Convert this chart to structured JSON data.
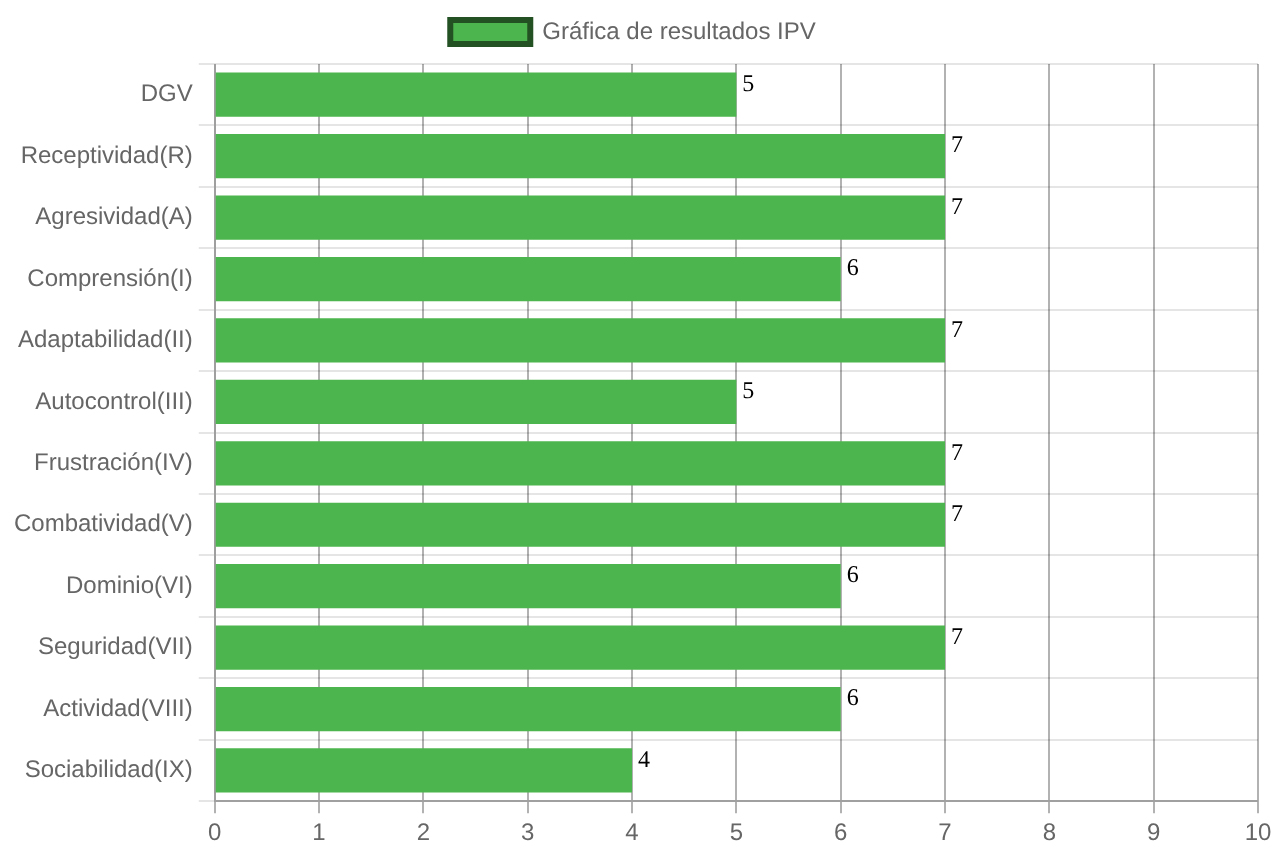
{
  "chart_data": {
    "type": "bar",
    "orientation": "horizontal",
    "categories": [
      "DGV",
      "Receptividad(R)",
      "Agresividad(A)",
      "Comprensión(I)",
      "Adaptabilidad(II)",
      "Autocontrol(III)",
      "Frustración(IV)",
      "Combatividad(V)",
      "Dominio(VI)",
      "Seguridad(VII)",
      "Actividad(VIII)",
      "Sociabilidad(IX)"
    ],
    "series": [
      {
        "name": "Gráfica de resultados IPV",
        "color": "#4db54d",
        "values": [
          5,
          7,
          7,
          6,
          7,
          5,
          7,
          7,
          6,
          7,
          6,
          4
        ]
      }
    ],
    "xlim": [
      0,
      10
    ],
    "xticks": [
      0,
      1,
      2,
      3,
      4,
      5,
      6,
      7,
      8,
      9,
      10
    ],
    "grid": true,
    "legend": "top",
    "data_labels": true
  }
}
